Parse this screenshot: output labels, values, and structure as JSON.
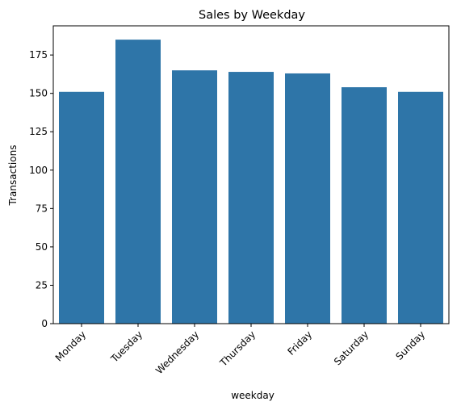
{
  "chart_data": {
    "type": "bar",
    "title": "Sales by Weekday",
    "xlabel": "weekday",
    "ylabel": "Transactions",
    "categories": [
      "Monday",
      "Tuesday",
      "Wednesday",
      "Thursday",
      "Friday",
      "Saturday",
      "Sunday"
    ],
    "values": [
      151,
      185,
      165,
      164,
      163,
      154,
      151
    ],
    "ylim": [
      0,
      194
    ],
    "yticks": [
      0,
      25,
      50,
      75,
      100,
      125,
      150,
      175
    ],
    "grid": false,
    "bar_color": "#2e75a8"
  }
}
